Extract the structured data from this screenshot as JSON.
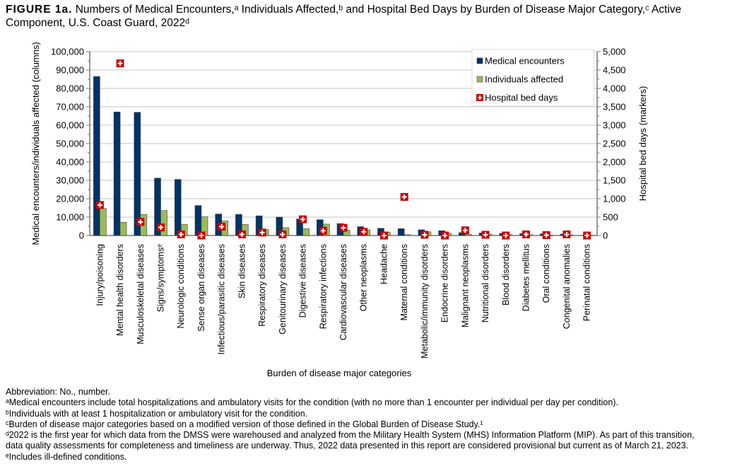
{
  "title": {
    "label": "FIGURE 1a.",
    "text": "Numbers of Medical Encounters,ᵃ Individuals Affected,ᵇ and Hospital Bed Days by Burden of Disease Major Category,ᶜ Active Component, U.S. Coast Guard, 2022ᵈ"
  },
  "chart_data": {
    "type": "bar",
    "xlabel": "Burden of disease major categories",
    "ylabel": "Medical encounters/individuals affected (columns)",
    "y2label": "Hospital bed days (markers)",
    "ylim": [
      0,
      100000
    ],
    "y2lim": [
      0,
      5000
    ],
    "yticks": [
      "0",
      "10,000",
      "20,000",
      "30,000",
      "40,000",
      "50,000",
      "60,000",
      "70,000",
      "80,000",
      "90,000",
      "100,000"
    ],
    "y2ticks": [
      "0",
      "500",
      "1,000",
      "1,500",
      "2,000",
      "2,500",
      "3,000",
      "3,500",
      "4,000",
      "4,500",
      "5,000"
    ],
    "grid": true,
    "legend_placement": "top-right",
    "categories": [
      "Injury/poisoning",
      "Mental health disorders",
      "Musculoskeletal diseases",
      "Signs/symptomsᵉ",
      "Neurologic conditions",
      "Sense organ diseases",
      "Infectious/parasitic diseases",
      "Skin diseases",
      "Respiratory diseases",
      "Genitourinary diseases",
      "Digestive diseases",
      "Respiratory infections",
      "Cardiovascular diseases",
      "Other neoplasms",
      "Headache",
      "Maternal conditions",
      "Metabolic/immunity disorders",
      "Endocrine disorders",
      "Malignant neoplasms",
      "Nutritional disorders",
      "Blood disorders",
      "Diabetes mellitus",
      "Oral conditions",
      "Congenital anomalies",
      "Perinatal conditions"
    ],
    "series": [
      {
        "name": "Medical encounters",
        "type": "bar",
        "axis": "left",
        "color": "#003366",
        "values": [
          86500,
          67200,
          67000,
          31200,
          30500,
          16300,
          11700,
          11500,
          10700,
          10000,
          9000,
          8600,
          6500,
          4800,
          3900,
          3700,
          3100,
          2600,
          1600,
          1400,
          1200,
          1000,
          900,
          800,
          100
        ]
      },
      {
        "name": "Individuals affected",
        "type": "bar",
        "axis": "left",
        "color": "#9bbb59",
        "values": [
          14800,
          7200,
          11500,
          13600,
          6100,
          10200,
          7900,
          6000,
          3200,
          4300,
          3700,
          6200,
          3000,
          3000,
          1900,
          500,
          2000,
          1200,
          700,
          700,
          500,
          400,
          300,
          300,
          50
        ]
      },
      {
        "name": "Hospital bed days",
        "type": "marker",
        "axis": "right",
        "color": "#cc0000",
        "values": [
          830,
          4680,
          370,
          220,
          30,
          0,
          240,
          30,
          80,
          30,
          440,
          130,
          210,
          100,
          0,
          1050,
          20,
          0,
          140,
          20,
          0,
          30,
          10,
          30,
          0
        ]
      }
    ]
  },
  "notes": [
    "Abbreviation: No., number.",
    "ᵃMedical encounters include total hospitalizations and ambulatory visits for the condition (with no more than 1 encounter per individual per day per condition).",
    "ᵇIndividuals with at least 1 hospitalization or ambulatory visit for the condition.",
    "ᶜBurden of disease major categories based on a modified version of those defined in the Global Burden of Disease Study.¹",
    "ᵈ2022 is the first year for which data from the DMSS were warehoused and analyzed from the Military Health System (MHS) Information Platform (MIP). As part of this transition,",
    "data quality assessments for completeness and timeliness are underway. Thus, 2022 data presented in this report are considered provisional but current as of March 21, 2023.",
    "ᵉIncludes ill-defined conditions."
  ]
}
